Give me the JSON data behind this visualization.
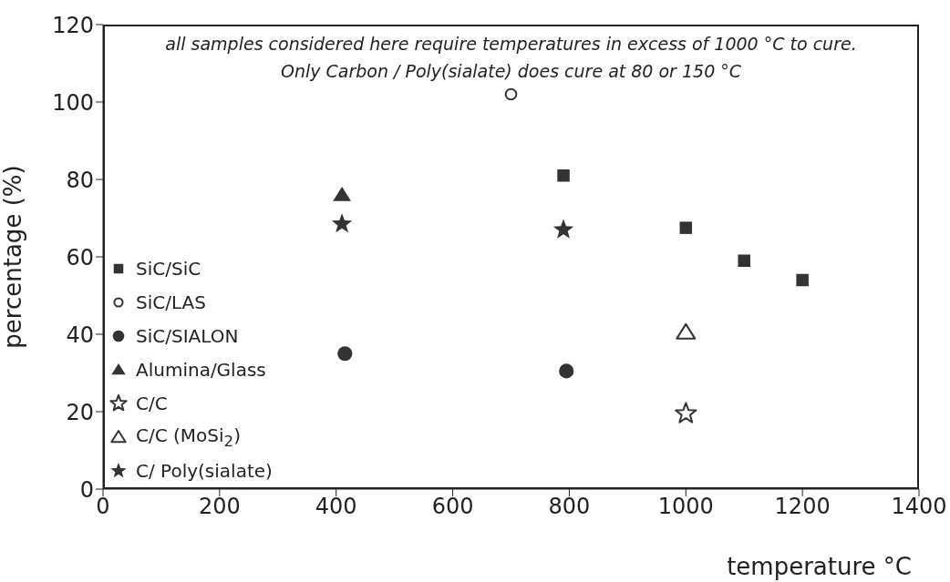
{
  "chart_data": {
    "type": "scatter",
    "xlabel": "temperature °C",
    "ylabel": "percentage (%)",
    "xlim": [
      0,
      1400
    ],
    "xticks": [
      0,
      200,
      400,
      600,
      800,
      1000,
      1200,
      1400
    ],
    "ylim": [
      0,
      120
    ],
    "yticks": [
      0,
      20,
      40,
      60,
      80,
      100,
      120
    ],
    "grid": false,
    "legend": "bottom left",
    "annotations": [
      "all samples considered here require temperatures in excess of 1000 °C to cure. Only Carbon / Poly(sialate) does cure at 80 or 150 °C"
    ],
    "series": [
      {
        "name": "SiC/SiC",
        "color": "#333333",
        "marker": "square",
        "x": [
          790,
          1000,
          1100,
          1200
        ],
        "values": [
          81,
          67.5,
          59,
          54
        ]
      },
      {
        "name": "SiC/LAS",
        "color": "#ffffff",
        "marker": "circle",
        "x": [
          700
        ],
        "values": [
          102
        ]
      },
      {
        "name": "SiC/SIALON",
        "color": "#333333",
        "marker": "circle",
        "x": [
          415,
          795
        ],
        "values": [
          35,
          30.5
        ]
      },
      {
        "name": "Alumina/Glass",
        "color": "#333333",
        "marker": "triangle",
        "x": [
          410
        ],
        "values": [
          76
        ]
      },
      {
        "name": "C/C",
        "color": "#ffffff",
        "marker": "star",
        "x": [
          1000
        ],
        "values": [
          19.5
        ]
      },
      {
        "name": "C/C (MoSi$_{2}$)",
        "color": "#ffffff",
        "marker": "triangle",
        "x": [
          1000
        ],
        "values": [
          40.5
        ]
      },
      {
        "name": "C/ Poly(sialate)",
        "color": "#333333",
        "marker": "star",
        "x": [
          410,
          790
        ],
        "values": [
          68.5,
          67
        ]
      }
    ]
  }
}
